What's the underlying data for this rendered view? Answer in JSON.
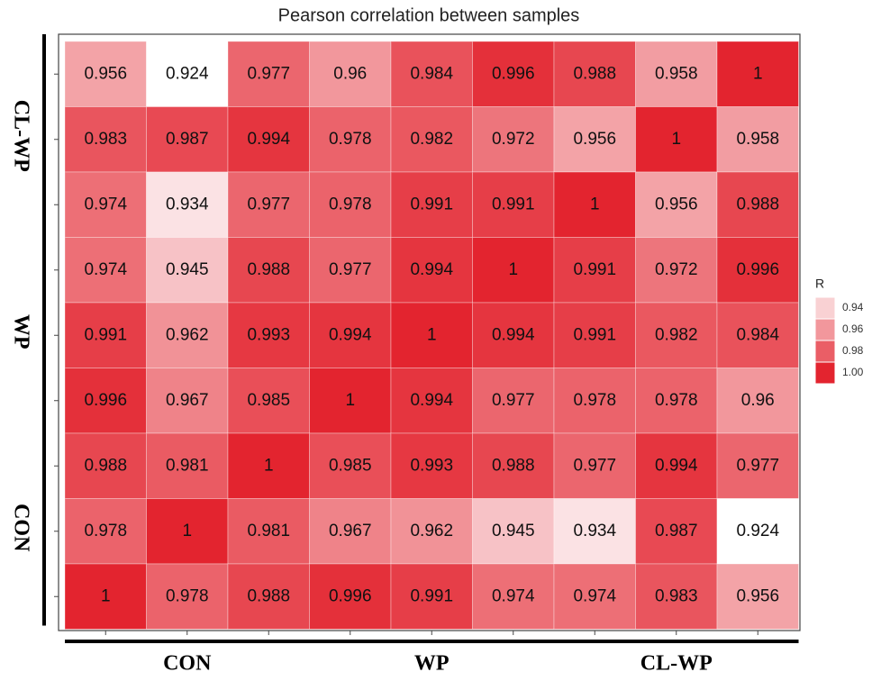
{
  "chart_data": {
    "type": "heatmap",
    "title": "Pearson correlation between samples",
    "x_groups": [
      "CON",
      "WP",
      "CL-WP"
    ],
    "y_groups": [
      "CL-WP",
      "WP",
      "CON"
    ],
    "values": [
      [
        0.956,
        0.924,
        0.977,
        0.96,
        0.984,
        0.996,
        0.988,
        0.958,
        1
      ],
      [
        0.983,
        0.987,
        0.994,
        0.978,
        0.982,
        0.972,
        0.956,
        1,
        0.958
      ],
      [
        0.974,
        0.934,
        0.977,
        0.978,
        0.991,
        0.991,
        1,
        0.956,
        0.988
      ],
      [
        0.974,
        0.945,
        0.988,
        0.977,
        0.994,
        1,
        0.991,
        0.972,
        0.996
      ],
      [
        0.991,
        0.962,
        0.993,
        0.994,
        1,
        0.994,
        0.991,
        0.982,
        0.984
      ],
      [
        0.996,
        0.967,
        0.985,
        1,
        0.994,
        0.977,
        0.978,
        0.978,
        0.96
      ],
      [
        0.988,
        0.981,
        1,
        0.985,
        0.993,
        0.988,
        0.977,
        0.994,
        0.977
      ],
      [
        0.978,
        1,
        0.981,
        0.967,
        0.962,
        0.945,
        0.934,
        0.987,
        0.924
      ],
      [
        1,
        0.978,
        0.988,
        0.996,
        0.991,
        0.974,
        0.974,
        0.983,
        0.956
      ]
    ],
    "zlim": [
      0.924,
      1
    ],
    "colorscale": [
      "#ffffff",
      "#e3242f"
    ],
    "legend_title": "R",
    "legend_ticks": [
      0.94,
      0.96,
      0.98,
      {
        "value": 1,
        "label": "1.00"
      }
    ],
    "legend": "right"
  }
}
